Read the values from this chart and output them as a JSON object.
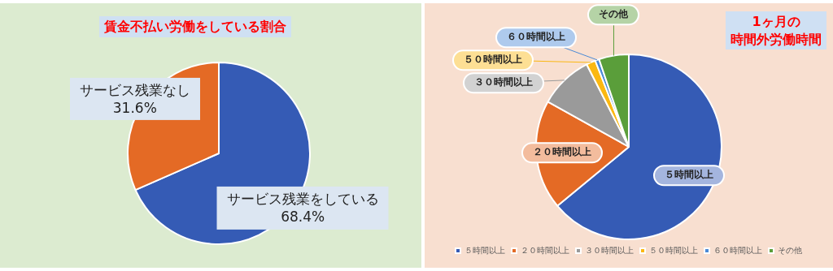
{
  "chart_data": [
    {
      "type": "pie",
      "title": "賃金不払い労働をしている割合",
      "categories": [
        "サービス残業をしている",
        "サービス残業なし"
      ],
      "values": [
        68.4,
        31.6
      ],
      "value_labels": [
        "68.4%",
        "31.6%"
      ],
      "colors": [
        "#355bb5",
        "#e46a25"
      ]
    },
    {
      "type": "pie",
      "title": "1ヶ月の",
      "subtitle": "時間外労働時間",
      "categories": [
        "５時間以上",
        "２０時間以上",
        "３０時間以上",
        "５０時間以上",
        "６０時間以上",
        "その他"
      ],
      "values": [
        64.0,
        19.1,
        9.4,
        1.6,
        0.7,
        5.2
      ],
      "colors": [
        "#355bb5",
        "#e46a25",
        "#9a9a9a",
        "#fbb812",
        "#4a8ad6",
        "#5a9e3a"
      ],
      "legend": "bottom"
    }
  ]
}
